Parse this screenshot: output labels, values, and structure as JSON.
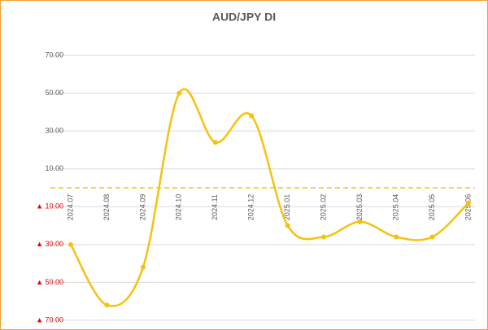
{
  "chart_data": {
    "type": "line",
    "title": "AUD/JPY  DI",
    "categories": [
      "2024.07",
      "2024.08",
      "2024.09",
      "2024.10",
      "2024.11",
      "2024.12",
      "2025.01",
      "2025.02",
      "2025.03",
      "2025.04",
      "2025.05",
      "2025.06"
    ],
    "values": [
      -30,
      -62,
      -42,
      50,
      24,
      38,
      -20,
      -26,
      -18,
      -26,
      -26,
      -8
    ],
    "color": "#f5c20f",
    "smooth": true,
    "zero_line": true,
    "grid": true,
    "ylim": [
      -70,
      70
    ],
    "yticks": [
      {
        "value": 70,
        "label": "70.00"
      },
      {
        "value": 50,
        "label": "50.00"
      },
      {
        "value": 30,
        "label": "30.00"
      },
      {
        "value": 10,
        "label": "10.00"
      },
      {
        "value": -10,
        "label": "▲ 10.00"
      },
      {
        "value": -30,
        "label": "▲ 30.00"
      },
      {
        "value": -50,
        "label": "▲ 50.00"
      },
      {
        "value": -70,
        "label": "▲ 70.00"
      }
    ]
  }
}
